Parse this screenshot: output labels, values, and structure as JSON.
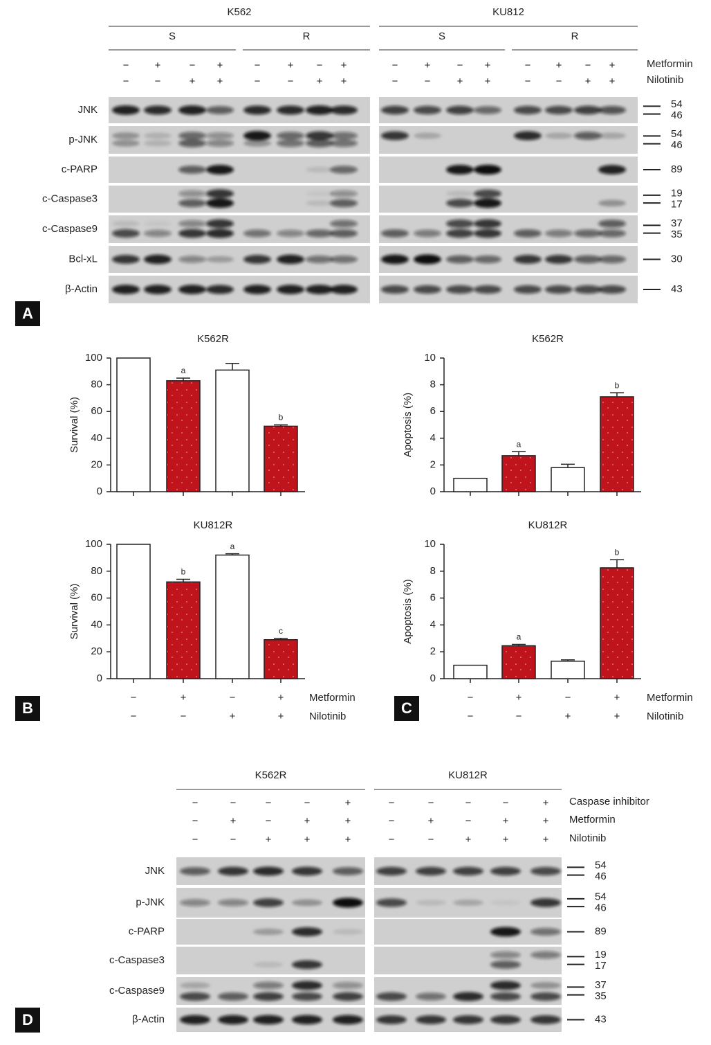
{
  "panel_a": {
    "label": "A",
    "groups": [
      {
        "name": "K562",
        "subgroups": [
          "S",
          "R"
        ],
        "treatments": [
          {
            "signs": [
              "−",
              "+",
              "−",
              "+",
              "−",
              "+",
              "−",
              "+"
            ]
          },
          {
            "signs": [
              "−",
              "−",
              "+",
              "+",
              "−",
              "−",
              "+",
              "+"
            ]
          }
        ]
      },
      {
        "name": "KU812",
        "subgroups": [
          "S",
          "R"
        ],
        "treatments": [
          {
            "signs": [
              "−",
              "+",
              "−",
              "+",
              "−",
              "+",
              "−",
              "+"
            ]
          },
          {
            "signs": [
              "−",
              "−",
              "+",
              "+",
              "−",
              "−",
              "+",
              "+"
            ]
          }
        ]
      }
    ],
    "treatment_names": [
      "Metformin",
      "Nilotinib"
    ],
    "blots": [
      {
        "name": "JNK",
        "markers": [
          54,
          46
        ]
      },
      {
        "name": "p-JNK",
        "markers": [
          54,
          46
        ]
      },
      {
        "name": "c-PARP",
        "markers": [
          89
        ]
      },
      {
        "name": "c-Caspase3",
        "markers": [
          19,
          17
        ]
      },
      {
        "name": "c-Caspase9",
        "markers": [
          37,
          35
        ]
      },
      {
        "name": "Bcl-xL",
        "markers": [
          30
        ]
      },
      {
        "name": "β-Actin",
        "markers": [
          43
        ]
      }
    ]
  },
  "panel_bc": {
    "labels": [
      "B",
      "C"
    ],
    "treatments": [
      {
        "name": "Metformin",
        "signs": [
          "−",
          "+",
          "−",
          "+"
        ]
      },
      {
        "name": "Nilotinib",
        "signs": [
          "−",
          "−",
          "+",
          "+"
        ]
      }
    ]
  },
  "chart_data": [
    {
      "type": "bar",
      "title": "K562R",
      "y_label": "Survival (%)",
      "values": [
        100,
        83,
        91,
        49
      ],
      "errors": [
        0,
        2,
        5,
        1
      ],
      "annotations": [
        null,
        "a",
        null,
        "b"
      ],
      "colors": [
        "#ffffff",
        "#c0141c",
        "#ffffff",
        "#c0141c"
      ],
      "ylim": [
        0,
        100
      ],
      "yticks": [
        0,
        20,
        40,
        60,
        80,
        100
      ]
    },
    {
      "type": "bar",
      "title": "K562R",
      "y_label": "Apoptosis (%)",
      "values": [
        1,
        2.7,
        1.8,
        7.1
      ],
      "errors": [
        0,
        0.3,
        0.25,
        0.3
      ],
      "annotations": [
        null,
        "a",
        null,
        "b"
      ],
      "colors": [
        "#ffffff",
        "#c0141c",
        "#ffffff",
        "#c0141c"
      ],
      "ylim": [
        0,
        10
      ],
      "yticks": [
        0,
        2,
        4,
        6,
        8,
        10
      ]
    },
    {
      "type": "bar",
      "title": "KU812R",
      "y_label": "Survival (%)",
      "values": [
        100,
        72,
        92,
        29
      ],
      "errors": [
        0,
        2,
        1,
        1
      ],
      "annotations": [
        null,
        "b",
        "a",
        "c"
      ],
      "colors": [
        "#ffffff",
        "#c0141c",
        "#ffffff",
        "#c0141c"
      ],
      "ylim": [
        0,
        100
      ],
      "yticks": [
        0,
        20,
        40,
        60,
        80,
        100
      ]
    },
    {
      "type": "bar",
      "title": "KU812R",
      "y_label": "Apoptosis (%)",
      "values": [
        1,
        2.45,
        1.3,
        8.25
      ],
      "errors": [
        0,
        0.1,
        0.1,
        0.6
      ],
      "annotations": [
        null,
        "a",
        null,
        "b"
      ],
      "colors": [
        "#ffffff",
        "#c0141c",
        "#ffffff",
        "#c0141c"
      ],
      "ylim": [
        0,
        10
      ],
      "yticks": [
        0,
        2,
        4,
        6,
        8,
        10
      ]
    }
  ],
  "panel_d": {
    "label": "D",
    "groups": [
      {
        "name": "K562R",
        "treatments": [
          {
            "signs": [
              "−",
              "−",
              "−",
              "−",
              "+"
            ]
          },
          {
            "signs": [
              "−",
              "+",
              "−",
              "+",
              "+"
            ]
          },
          {
            "signs": [
              "−",
              "−",
              "+",
              "+",
              "+"
            ]
          }
        ]
      },
      {
        "name": "KU812R",
        "treatments": [
          {
            "signs": [
              "−",
              "−",
              "−",
              "−",
              "+"
            ]
          },
          {
            "signs": [
              "−",
              "+",
              "−",
              "+",
              "+"
            ]
          },
          {
            "signs": [
              "−",
              "−",
              "+",
              "+",
              "+"
            ]
          }
        ]
      }
    ],
    "treatment_names": [
      "Caspase inhibitor",
      "Metformin",
      "Nilotinib"
    ],
    "blots": [
      {
        "name": "JNK",
        "markers": [
          54,
          46
        ]
      },
      {
        "name": "p-JNK",
        "markers": [
          54,
          46
        ]
      },
      {
        "name": "c-PARP",
        "markers": [
          89
        ]
      },
      {
        "name": "c-Caspase3",
        "markers": [
          19,
          17
        ]
      },
      {
        "name": "c-Caspase9",
        "markers": [
          37,
          35
        ]
      },
      {
        "name": "β-Actin",
        "markers": [
          43
        ]
      }
    ]
  }
}
